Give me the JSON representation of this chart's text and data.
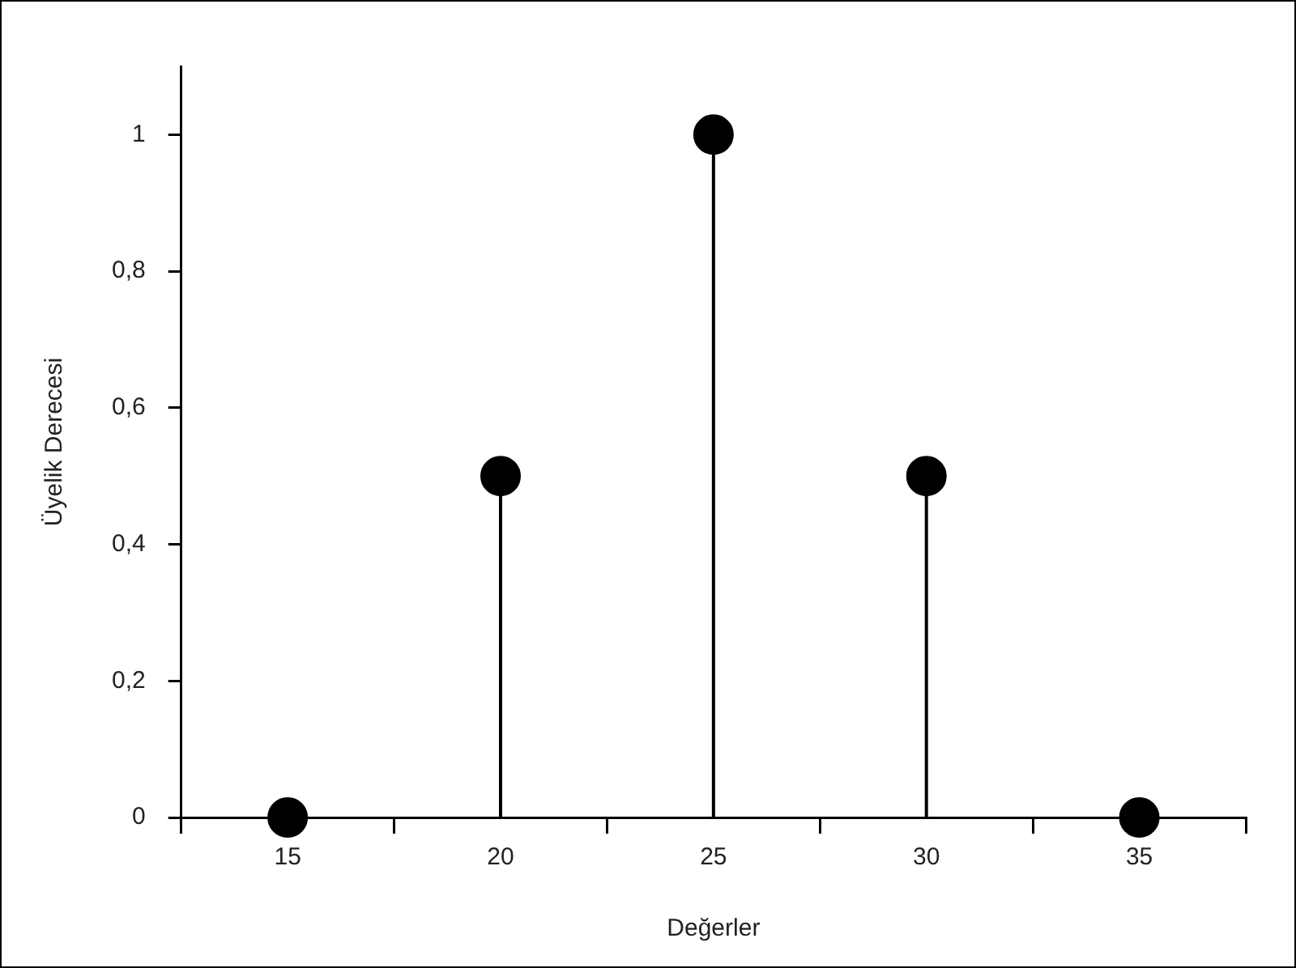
{
  "chart_data": {
    "type": "lollipop",
    "xlabel": "Değerler",
    "ylabel": "Üyelik Derecesi",
    "categories": [
      "15",
      "20",
      "25",
      "30",
      "35"
    ],
    "values": [
      0,
      0.5,
      1,
      0.5,
      0
    ],
    "color": "#000000",
    "marker": "circle",
    "ylim": [
      0,
      1.1
    ],
    "yticks": [
      0,
      {
        "value": 0.2,
        "label": "0,2"
      },
      {
        "value": 0.4,
        "label": "0,4"
      },
      {
        "value": 0.6,
        "label": "0,6"
      },
      {
        "value": 0.8,
        "label": "0,8"
      },
      1
    ],
    "legend": false
  }
}
